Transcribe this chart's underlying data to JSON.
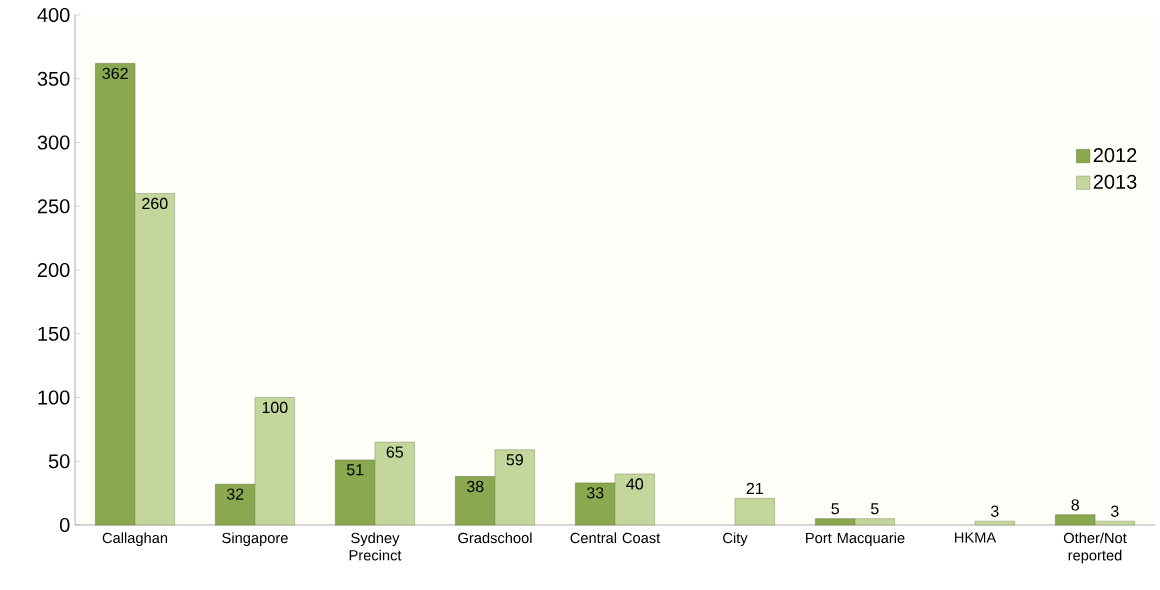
{
  "chart_data": {
    "type": "bar",
    "categories": [
      "Callaghan",
      "Singapore",
      "Sydney Precinct",
      "Gradschool",
      "Central Coast",
      "City",
      "Port Macquarie",
      "HKMA",
      "Other/Not reported"
    ],
    "series": [
      {
        "name": "2012",
        "color": "#8aa84f",
        "values": [
          362,
          32,
          51,
          38,
          33,
          null,
          5,
          null,
          8
        ]
      },
      {
        "name": "2013",
        "color": "#c3d69b",
        "values": [
          260,
          100,
          65,
          59,
          40,
          21,
          5,
          3,
          3
        ]
      }
    ],
    "ylim": [
      0,
      400
    ],
    "yticks": [
      0,
      50,
      100,
      150,
      200,
      250,
      300,
      350,
      400
    ],
    "data_labels": true,
    "legend": "right",
    "grid": false
  }
}
